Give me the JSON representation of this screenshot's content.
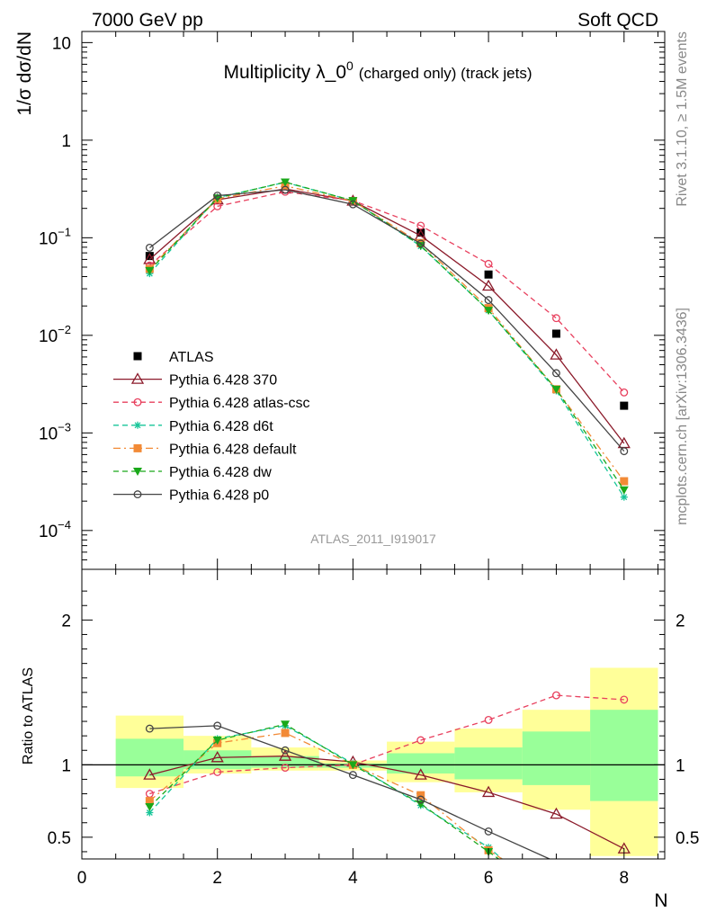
{
  "header": {
    "left": "7000 GeV pp",
    "right": "Soft QCD"
  },
  "side_texts": {
    "rivet": "Rivet 3.1.10, ≥ 1.5M events",
    "mcplots": "mcplots.cern.ch [arXiv:1306.3436]"
  },
  "chart_data": [
    {
      "type": "scatter",
      "panel": "main",
      "title_main": "Multiplicity λ_0",
      "title_sup": "0",
      "title_small": "(charged only) (track jets)",
      "analysis_id": "ATLAS_2011_I919017",
      "ylabel": "1/σ dσ/dN",
      "yscale": "log",
      "ylim": [
        4e-05,
        13
      ],
      "xlim": [
        0,
        8.6
      ],
      "grid": false,
      "legend_position": "middle-left",
      "yticks": [
        {
          "value": 10,
          "label": "10"
        },
        {
          "value": 1,
          "label": "1"
        },
        {
          "value": 0.1,
          "base": "10",
          "exp": "−1"
        },
        {
          "value": 0.01,
          "base": "10",
          "exp": "−2"
        },
        {
          "value": 0.001,
          "base": "10",
          "exp": "−3"
        },
        {
          "value": 0.0001,
          "base": "10",
          "exp": "−4"
        }
      ],
      "series": [
        {
          "name": "ATLAS",
          "color": "#000000",
          "marker": "square-filled",
          "line": "none",
          "points": [
            [
              1,
              0.065
            ],
            [
              5,
              0.113
            ],
            [
              6,
              0.042
            ],
            [
              7,
              0.0104
            ],
            [
              8,
              0.0019
            ]
          ]
        },
        {
          "name": "Pythia 6.428 370",
          "color": "#8b1a2a",
          "marker": "triangle-open",
          "line": "solid",
          "points": [
            [
              1,
              0.06
            ],
            [
              2,
              0.245
            ],
            [
              3,
              0.317
            ],
            [
              4,
              0.238
            ],
            [
              5,
              0.105
            ],
            [
              6,
              0.032
            ],
            [
              7,
              0.0063
            ],
            [
              8,
              0.00078
            ]
          ]
        },
        {
          "name": "Pythia 6.428 atlas-csc",
          "color": "#e8405e",
          "marker": "circle-open",
          "line": "dashed",
          "points": [
            [
              1,
              0.052
            ],
            [
              2,
              0.21
            ],
            [
              3,
              0.296
            ],
            [
              4,
              0.24
            ],
            [
              5,
              0.133
            ],
            [
              6,
              0.054
            ],
            [
              7,
              0.015
            ],
            [
              8,
              0.0026
            ]
          ]
        },
        {
          "name": "Pythia 6.428 d6t",
          "color": "#18c69a",
          "marker": "star",
          "line": "dashed",
          "points": [
            [
              1,
              0.043
            ],
            [
              2,
              0.258
            ],
            [
              3,
              0.37
            ],
            [
              4,
              0.24
            ],
            [
              5,
              0.082
            ],
            [
              6,
              0.018
            ],
            [
              7,
              0.0027
            ],
            [
              8,
              0.00022
            ]
          ]
        },
        {
          "name": "Pythia 6.428 default",
          "color": "#f28a36",
          "marker": "square-filled",
          "line": "dashdot",
          "points": [
            [
              1,
              0.048
            ],
            [
              2,
              0.25
            ],
            [
              3,
              0.34
            ],
            [
              4,
              0.238
            ],
            [
              5,
              0.088
            ],
            [
              6,
              0.019
            ],
            [
              7,
              0.0028
            ],
            [
              8,
              0.00032
            ]
          ]
        },
        {
          "name": "Pythia 6.428 dw",
          "color": "#1aa81a",
          "marker": "triangle-down-filled",
          "line": "dashed",
          "points": [
            [
              1,
              0.046
            ],
            [
              2,
              0.255
            ],
            [
              3,
              0.372
            ],
            [
              4,
              0.24
            ],
            [
              5,
              0.083
            ],
            [
              6,
              0.018
            ],
            [
              7,
              0.0028
            ],
            [
              8,
              0.00026
            ]
          ]
        },
        {
          "name": "Pythia 6.428 p0",
          "color": "#444444",
          "marker": "circle-open",
          "line": "solid",
          "points": [
            [
              1,
              0.079
            ],
            [
              2,
              0.27
            ],
            [
              3,
              0.31
            ],
            [
              4,
              0.22
            ],
            [
              5,
              0.087
            ],
            [
              6,
              0.023
            ],
            [
              7,
              0.0041
            ],
            [
              8,
              0.00065
            ]
          ]
        }
      ]
    },
    {
      "type": "scatter",
      "panel": "ratio",
      "ylabel": "Ratio to ATLAS",
      "xlabel": "N",
      "ylim": [
        0.35,
        2.35
      ],
      "xlim": [
        0,
        8.6
      ],
      "yscale": "linear",
      "reference_line": 1,
      "xticks": [
        {
          "value": 0,
          "label": "0"
        },
        {
          "value": 2,
          "label": "2"
        },
        {
          "value": 4,
          "label": "4"
        },
        {
          "value": 6,
          "label": "6"
        },
        {
          "value": 8,
          "label": "8"
        }
      ],
      "yticks": [
        {
          "value": 0.5,
          "label": "0.5"
        },
        {
          "value": 1,
          "label": "1"
        },
        {
          "value": 2,
          "label": "2"
        }
      ],
      "uncertainty_bands": [
        {
          "x0": 0.5,
          "x1": 1.5,
          "outer": [
            0.84,
            1.34
          ],
          "inner": [
            0.92,
            1.18
          ]
        },
        {
          "x0": 1.5,
          "x1": 2.5,
          "outer": [
            0.94,
            1.2
          ],
          "inner": [
            0.97,
            1.1
          ]
        },
        {
          "x0": 2.5,
          "x1": 3.5,
          "outer": [
            0.96,
            1.12
          ],
          "inner": [
            0.98,
            1.06
          ]
        },
        {
          "x0": 3.5,
          "x1": 4.5,
          "outer": [
            0.96,
            1.03
          ],
          "inner": [
            0.98,
            1.01
          ]
        },
        {
          "x0": 4.5,
          "x1": 5.5,
          "outer": [
            0.88,
            1.16
          ],
          "inner": [
            0.94,
            1.08
          ]
        },
        {
          "x0": 5.5,
          "x1": 6.5,
          "outer": [
            0.81,
            1.25
          ],
          "inner": [
            0.9,
            1.12
          ]
        },
        {
          "x0": 6.5,
          "x1": 7.5,
          "outer": [
            0.69,
            1.38
          ],
          "inner": [
            0.86,
            1.23
          ]
        },
        {
          "x0": 7.5,
          "x1": 8.5,
          "outer": [
            0.37,
            1.67
          ],
          "inner": [
            0.75,
            1.38
          ]
        }
      ],
      "series": [
        {
          "name": "Pythia 6.428 370",
          "points": [
            [
              1,
              0.93
            ],
            [
              2,
              1.05
            ],
            [
              3,
              1.06
            ],
            [
              4,
              1.02
            ],
            [
              5,
              0.93
            ],
            [
              6,
              0.81
            ],
            [
              7,
              0.66
            ],
            [
              8,
              0.42
            ]
          ]
        },
        {
          "name": "Pythia 6.428 atlas-csc",
          "points": [
            [
              1,
              0.8
            ],
            [
              2,
              0.95
            ],
            [
              3,
              0.98
            ],
            [
              4,
              1.0
            ],
            [
              5,
              1.17
            ],
            [
              6,
              1.31
            ],
            [
              7,
              1.48
            ],
            [
              8,
              1.45
            ]
          ]
        },
        {
          "name": "Pythia 6.428 d6t",
          "points": [
            [
              1,
              0.67
            ],
            [
              2,
              1.18
            ],
            [
              3,
              1.27
            ],
            [
              4,
              1.01
            ],
            [
              5,
              0.72
            ],
            [
              6,
              0.43
            ],
            [
              6.2,
              0.35
            ]
          ]
        },
        {
          "name": "Pythia 6.428 default",
          "points": [
            [
              1,
              0.75
            ],
            [
              2,
              1.15
            ],
            [
              3,
              1.22
            ],
            [
              4,
              1.0
            ],
            [
              5,
              0.79
            ],
            [
              6,
              0.41
            ],
            [
              6.2,
              0.35
            ]
          ]
        },
        {
          "name": "Pythia 6.428 dw",
          "points": [
            [
              1,
              0.71
            ],
            [
              2,
              1.17
            ],
            [
              3,
              1.28
            ],
            [
              4,
              1.0
            ],
            [
              5,
              0.73
            ],
            [
              6,
              0.4
            ],
            [
              6.15,
              0.35
            ]
          ]
        },
        {
          "name": "Pythia 6.428 p0",
          "points": [
            [
              1,
              1.25
            ],
            [
              2,
              1.27
            ],
            [
              3,
              1.1
            ],
            [
              4,
              0.93
            ],
            [
              5,
              0.76
            ],
            [
              6,
              0.54
            ],
            [
              6.9,
              0.35
            ]
          ]
        }
      ]
    }
  ]
}
